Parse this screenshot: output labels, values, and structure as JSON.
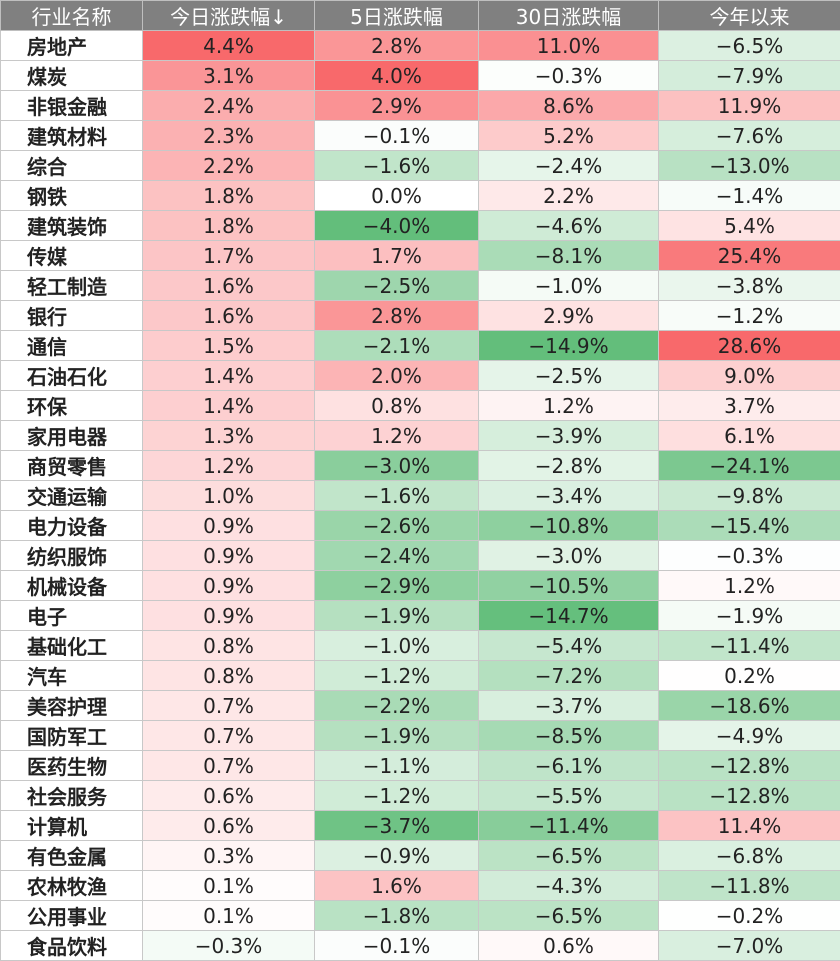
{
  "chart_data": {
    "type": "table",
    "columns": [
      "行业名称",
      "今日涨跌幅↓",
      "5日涨跌幅",
      "30日涨跌幅",
      "今年以来"
    ],
    "rows": [
      {
        "name": "房地产",
        "d1": "4.4%",
        "d5": "2.8%",
        "d30": "11.0%",
        "ytd": "−6.5%"
      },
      {
        "name": "煤炭",
        "d1": "3.1%",
        "d5": "4.0%",
        "d30": "−0.3%",
        "ytd": "−7.9%"
      },
      {
        "name": "非银金融",
        "d1": "2.4%",
        "d5": "2.9%",
        "d30": "8.6%",
        "ytd": "11.9%"
      },
      {
        "name": "建筑材料",
        "d1": "2.3%",
        "d5": "−0.1%",
        "d30": "5.2%",
        "ytd": "−7.6%"
      },
      {
        "name": "综合",
        "d1": "2.2%",
        "d5": "−1.6%",
        "d30": "−2.4%",
        "ytd": "−13.0%"
      },
      {
        "name": "钢铁",
        "d1": "1.8%",
        "d5": "0.0%",
        "d30": "2.2%",
        "ytd": "−1.4%"
      },
      {
        "name": "建筑装饰",
        "d1": "1.8%",
        "d5": "−4.0%",
        "d30": "−4.6%",
        "ytd": "5.4%"
      },
      {
        "name": "传媒",
        "d1": "1.7%",
        "d5": "1.7%",
        "d30": "−8.1%",
        "ytd": "25.4%"
      },
      {
        "name": "轻工制造",
        "d1": "1.6%",
        "d5": "−2.5%",
        "d30": "−1.0%",
        "ytd": "−3.8%"
      },
      {
        "name": "银行",
        "d1": "1.6%",
        "d5": "2.8%",
        "d30": "2.9%",
        "ytd": "−1.2%"
      },
      {
        "name": "通信",
        "d1": "1.5%",
        "d5": "−2.1%",
        "d30": "−14.9%",
        "ytd": "28.6%"
      },
      {
        "name": "石油石化",
        "d1": "1.4%",
        "d5": "2.0%",
        "d30": "−2.5%",
        "ytd": "9.0%"
      },
      {
        "name": "环保",
        "d1": "1.4%",
        "d5": "0.8%",
        "d30": "1.2%",
        "ytd": "3.7%"
      },
      {
        "name": "家用电器",
        "d1": "1.3%",
        "d5": "1.2%",
        "d30": "−3.9%",
        "ytd": "6.1%"
      },
      {
        "name": "商贸零售",
        "d1": "1.2%",
        "d5": "−3.0%",
        "d30": "−2.8%",
        "ytd": "−24.1%"
      },
      {
        "name": "交通运输",
        "d1": "1.0%",
        "d5": "−1.6%",
        "d30": "−3.4%",
        "ytd": "−9.8%"
      },
      {
        "name": "电力设备",
        "d1": "0.9%",
        "d5": "−2.6%",
        "d30": "−10.8%",
        "ytd": "−15.4%"
      },
      {
        "name": "纺织服饰",
        "d1": "0.9%",
        "d5": "−2.4%",
        "d30": "−3.0%",
        "ytd": "−0.3%"
      },
      {
        "name": "机械设备",
        "d1": "0.9%",
        "d5": "−2.9%",
        "d30": "−10.5%",
        "ytd": "1.2%"
      },
      {
        "name": "电子",
        "d1": "0.9%",
        "d5": "−1.9%",
        "d30": "−14.7%",
        "ytd": "−1.9%"
      },
      {
        "name": "基础化工",
        "d1": "0.8%",
        "d5": "−1.0%",
        "d30": "−5.4%",
        "ytd": "−11.4%"
      },
      {
        "name": "汽车",
        "d1": "0.8%",
        "d5": "−1.2%",
        "d30": "−7.2%",
        "ytd": "0.2%"
      },
      {
        "name": "美容护理",
        "d1": "0.7%",
        "d5": "−2.2%",
        "d30": "−3.7%",
        "ytd": "−18.6%"
      },
      {
        "name": "国防军工",
        "d1": "0.7%",
        "d5": "−1.9%",
        "d30": "−8.5%",
        "ytd": "−4.9%"
      },
      {
        "name": "医药生物",
        "d1": "0.7%",
        "d5": "−1.1%",
        "d30": "−6.1%",
        "ytd": "−12.8%"
      },
      {
        "name": "社会服务",
        "d1": "0.6%",
        "d5": "−1.2%",
        "d30": "−5.5%",
        "ytd": "−12.8%"
      },
      {
        "name": "计算机",
        "d1": "0.6%",
        "d5": "−3.7%",
        "d30": "−11.4%",
        "ytd": "11.4%"
      },
      {
        "name": "有色金属",
        "d1": "0.3%",
        "d5": "−0.9%",
        "d30": "−6.5%",
        "ytd": "−6.8%"
      },
      {
        "name": "农林牧渔",
        "d1": "0.1%",
        "d5": "1.6%",
        "d30": "−4.3%",
        "ytd": "−11.8%"
      },
      {
        "name": "公用事业",
        "d1": "0.1%",
        "d5": "−1.8%",
        "d30": "−6.5%",
        "ytd": "−0.2%"
      },
      {
        "name": "食品饮料",
        "d1": "−0.3%",
        "d5": "−0.1%",
        "d30": "0.6%",
        "ytd": "−7.0%"
      }
    ],
    "colors": {
      "header_bg": "#808080",
      "positive_max": "#f8696b",
      "negative_max": "#63be7b",
      "neutral": "#ffffff"
    }
  }
}
